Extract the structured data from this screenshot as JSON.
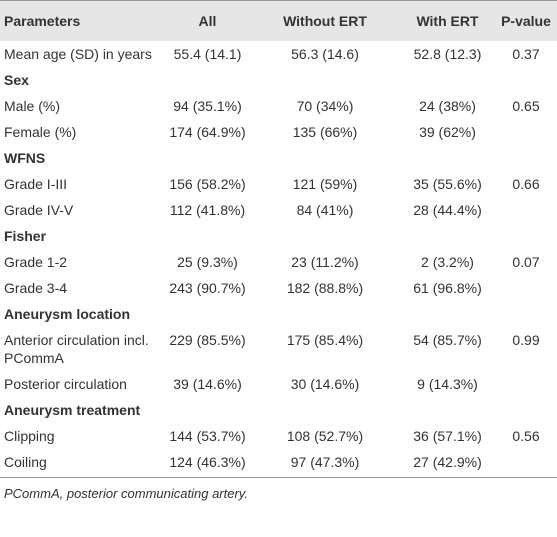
{
  "table": {
    "header": [
      "Parameters",
      "All",
      "Without ERT",
      "With ERT",
      "P-value"
    ],
    "rows": [
      [
        "Mean age (SD) in years",
        "55.4 (14.1)",
        "56.3 (14.6)",
        "52.8 (12.3)",
        "0.37"
      ],
      [
        "Sex"
      ],
      [
        "Male (%)",
        "94 (35.1%)",
        "70 (34%)",
        "24 (38%)",
        "0.65"
      ],
      [
        "Female (%)",
        "174 (64.9%)",
        "135 (66%)",
        "39 (62%)"
      ],
      [
        "WFNS"
      ],
      [
        "Grade I-III",
        "156 (58.2%)",
        "121 (59%)",
        "35 (55.6%)",
        "0.66"
      ],
      [
        "Grade IV-V",
        "112 (41.8%)",
        "84 (41%)",
        "28 (44.4%)"
      ],
      [
        "Fisher"
      ],
      [
        "Grade 1-2",
        "25 (9.3%)",
        "23 (11.2%)",
        "2 (3.2%)",
        "0.07"
      ],
      [
        "Grade 3-4",
        "243 (90.7%)",
        "182 (88.8%)",
        "61 (96.8%)"
      ],
      [
        "Aneurysm location"
      ],
      [
        "Anterior circulation incl. PCommA",
        "229 (85.5%)",
        "175 (85.4%)",
        "54 (85.7%)",
        "0.99"
      ],
      [
        "Posterior circulation",
        "39 (14.6%)",
        "30 (14.6%)",
        "9 (14.3%)"
      ],
      [
        "Aneurysm treatment"
      ],
      [
        "Clipping",
        "144 (53.7%)",
        "108 (52.7%)",
        "36 (57.1%)",
        "0.56"
      ],
      [
        "Coiling",
        "124 (46.3%)",
        "97 (47.3%)",
        "27 (42.9%)"
      ]
    ]
  },
  "footnote": "PCommA, posterior communicating artery."
}
